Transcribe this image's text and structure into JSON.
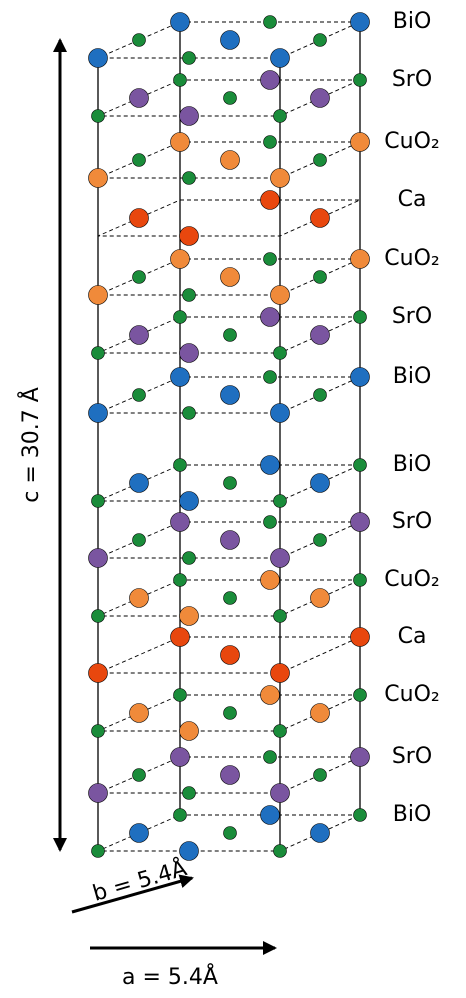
{
  "layers": [
    "BiO",
    "SrO",
    "CuO₂",
    "Ca",
    "CuO₂",
    "SrO",
    "BiO",
    "BiO",
    "SrO",
    "CuO₂",
    "Ca",
    "CuO₂",
    "SrO",
    "BiO"
  ],
  "axes": {
    "c": "c = 30.7 Å",
    "b": "b = 5.4Å",
    "a": "a = 5.4Å"
  }
}
